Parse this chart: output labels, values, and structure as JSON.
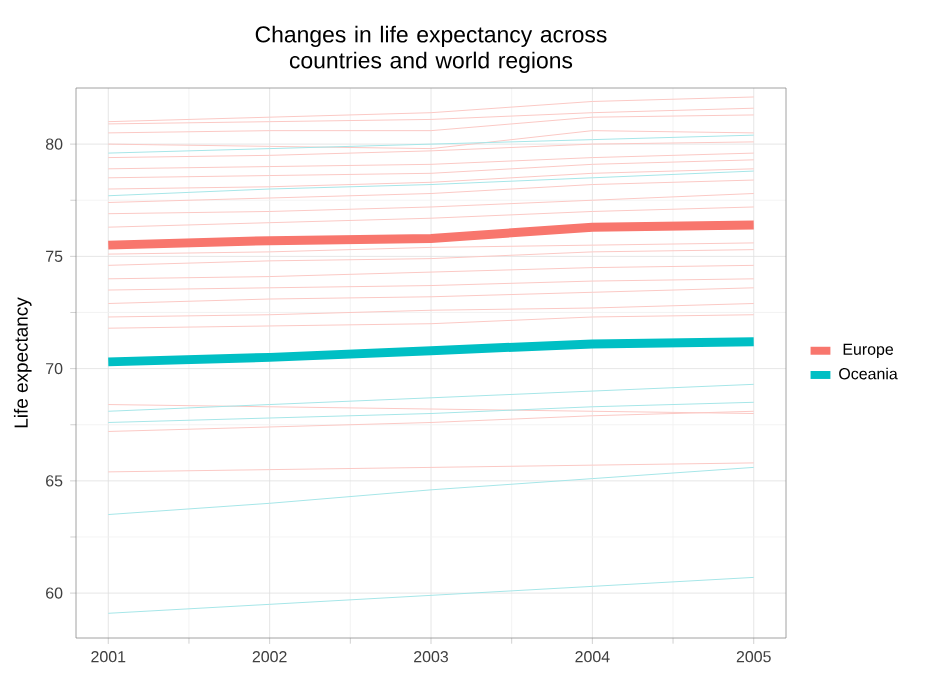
{
  "chart_data": {
    "type": "line",
    "title": "Changes in life expectancy across countries and world regions",
    "ylabel": "Life expectancy",
    "x": [
      2001,
      2002,
      2003,
      2004,
      2005
    ],
    "series": [
      {
        "color": "#fbc9c5",
        "values": [
          81.0,
          81.2,
          81.4,
          81.9,
          82.1
        ]
      },
      {
        "color": "#fbc9c5",
        "values": [
          80.9,
          81.0,
          81.1,
          81.4,
          81.6
        ]
      },
      {
        "color": "#fbc9c5",
        "values": [
          80.5,
          80.6,
          80.6,
          81.2,
          81.3
        ]
      },
      {
        "color": "#fbc9c5",
        "values": [
          80.0,
          79.9,
          79.8,
          80.6,
          80.5
        ]
      },
      {
        "color": "#fbc9c5",
        "values": [
          79.4,
          79.5,
          79.7,
          80.0,
          80.1
        ]
      },
      {
        "color": "#fbc9c5",
        "values": [
          78.9,
          79.0,
          79.1,
          79.4,
          79.6
        ]
      },
      {
        "color": "#fbc9c5",
        "values": [
          78.5,
          78.6,
          78.7,
          79.1,
          79.3
        ]
      },
      {
        "color": "#fbc9c5",
        "values": [
          78.0,
          78.1,
          78.3,
          78.7,
          78.9
        ]
      },
      {
        "color": "#fbc9c5",
        "values": [
          77.4,
          77.6,
          77.8,
          78.2,
          78.4
        ]
      },
      {
        "color": "#fbc9c5",
        "values": [
          76.9,
          77.0,
          77.2,
          77.5,
          77.8
        ]
      },
      {
        "color": "#fbc9c5",
        "values": [
          76.3,
          76.5,
          76.7,
          77.0,
          77.2
        ]
      },
      {
        "color": "#fbc9c5",
        "values": [
          75.1,
          75.2,
          75.4,
          75.5,
          75.6
        ]
      },
      {
        "color": "#fbc9c5",
        "values": [
          74.6,
          74.8,
          74.9,
          75.2,
          75.3
        ]
      },
      {
        "color": "#fbc9c5",
        "values": [
          74.0,
          74.1,
          74.3,
          74.5,
          74.6
        ]
      },
      {
        "color": "#fbc9c5",
        "values": [
          73.5,
          73.6,
          73.7,
          73.9,
          74.0
        ]
      },
      {
        "color": "#fbc9c5",
        "values": [
          72.9,
          73.1,
          73.2,
          73.4,
          73.6
        ]
      },
      {
        "color": "#fbc9c5",
        "values": [
          72.3,
          72.4,
          72.6,
          72.7,
          72.9
        ]
      },
      {
        "color": "#fbc9c5",
        "values": [
          71.8,
          71.9,
          72.0,
          72.3,
          72.4
        ]
      },
      {
        "color": "#fbc9c5",
        "values": [
          68.4,
          68.3,
          68.2,
          68.1,
          68.0
        ]
      },
      {
        "color": "#fbc9c5",
        "values": [
          67.2,
          67.4,
          67.6,
          67.9,
          68.1
        ]
      },
      {
        "color": "#fbc9c5",
        "values": [
          65.4,
          65.5,
          65.6,
          65.7,
          65.8
        ]
      },
      {
        "color": "#a6e6e8",
        "values": [
          79.6,
          79.8,
          80.0,
          80.2,
          80.4
        ]
      },
      {
        "color": "#a6e6e8",
        "values": [
          77.7,
          78.0,
          78.2,
          78.5,
          78.8
        ]
      },
      {
        "color": "#a6e6e8",
        "values": [
          68.1,
          68.4,
          68.7,
          69.0,
          69.3
        ]
      },
      {
        "color": "#a6e6e8",
        "values": [
          67.6,
          67.8,
          68.0,
          68.3,
          68.5
        ]
      },
      {
        "color": "#a6e6e8",
        "values": [
          63.5,
          64.0,
          64.6,
          65.1,
          65.6
        ]
      },
      {
        "color": "#a6e6e8",
        "values": [
          59.1,
          59.5,
          59.9,
          60.3,
          60.7
        ]
      },
      {
        "name": "Europe",
        "color": "#f8766d",
        "values": [
          75.5,
          75.7,
          75.8,
          76.3,
          76.4
        ]
      },
      {
        "name": "Oceania",
        "color": "#00bfc4",
        "values": [
          70.3,
          70.5,
          70.8,
          71.1,
          71.2
        ]
      }
    ],
    "xlim": [
      2000.8,
      2005.2
    ],
    "ylim": [
      58,
      82.5
    ],
    "xticks": [
      2001,
      2002,
      2003,
      2004,
      2005
    ],
    "yticks": [
      60,
      65,
      70,
      75,
      80
    ],
    "grid": true,
    "legend": "right"
  }
}
